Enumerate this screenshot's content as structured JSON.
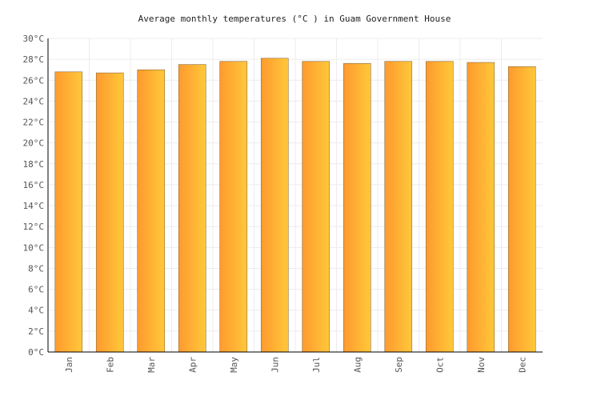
{
  "chart_data": {
    "type": "bar",
    "title": "Average monthly temperatures (°C ) in Guam Government House",
    "categories": [
      "Jan",
      "Feb",
      "Mar",
      "Apr",
      "May",
      "Jun",
      "Jul",
      "Aug",
      "Sep",
      "Oct",
      "Nov",
      "Dec"
    ],
    "values": [
      26.8,
      26.7,
      27.0,
      27.5,
      27.8,
      28.1,
      27.8,
      27.6,
      27.8,
      27.8,
      27.7,
      27.3
    ],
    "ylim": [
      0,
      30
    ],
    "yticks": [
      "0°C",
      "2°C",
      "4°C",
      "6°C",
      "8°C",
      "10°C",
      "12°C",
      "14°C",
      "16°C",
      "18°C",
      "20°C",
      "22°C",
      "24°C",
      "26°C",
      "28°C",
      "30°C"
    ],
    "grid": true,
    "colors": {
      "bar_start": "#ff9a2e",
      "bar_end": "#ffc83a",
      "edge": "#8a6a3a"
    }
  }
}
